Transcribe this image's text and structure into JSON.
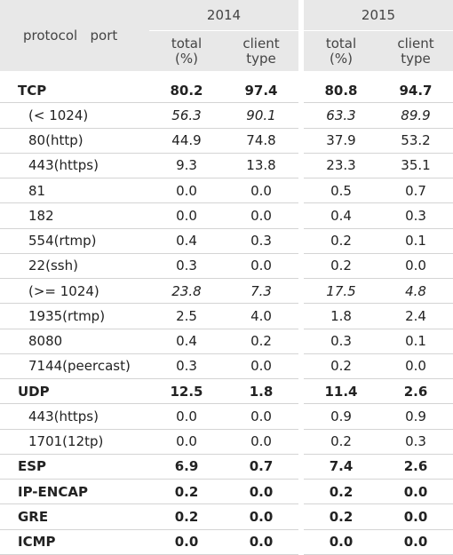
{
  "header": {
    "corner_label": "protocol   port",
    "years": [
      "2014",
      "2015"
    ],
    "sub": {
      "total": "total",
      "pct": "(%)",
      "client": "client",
      "type": "type"
    }
  },
  "rows": [
    {
      "label": "TCP",
      "level": "top",
      "v": [
        "80.2",
        "97.4",
        "80.8",
        "94.7"
      ]
    },
    {
      "label": "(< 1024)",
      "level": "subagg",
      "v": [
        "56.3",
        "90.1",
        "63.3",
        "89.9"
      ]
    },
    {
      "label": "80(http)",
      "level": "child",
      "v": [
        "44.9",
        "74.8",
        "37.9",
        "53.2"
      ]
    },
    {
      "label": "443(https)",
      "level": "child",
      "v": [
        "9.3",
        "13.8",
        "23.3",
        "35.1"
      ]
    },
    {
      "label": "81",
      "level": "child",
      "v": [
        "0.0",
        "0.0",
        "0.5",
        "0.7"
      ]
    },
    {
      "label": "182",
      "level": "child",
      "v": [
        "0.0",
        "0.0",
        "0.4",
        "0.3"
      ]
    },
    {
      "label": "554(rtmp)",
      "level": "child",
      "v": [
        "0.4",
        "0.3",
        "0.2",
        "0.1"
      ]
    },
    {
      "label": "22(ssh)",
      "level": "child",
      "v": [
        "0.3",
        "0.0",
        "0.2",
        "0.0"
      ]
    },
    {
      "label": "(>= 1024)",
      "level": "subagg",
      "v": [
        "23.8",
        "7.3",
        "17.5",
        "4.8"
      ]
    },
    {
      "label": "1935(rtmp)",
      "level": "child",
      "v": [
        "2.5",
        "4.0",
        "1.8",
        "2.4"
      ]
    },
    {
      "label": "8080",
      "level": "child",
      "v": [
        "0.4",
        "0.2",
        "0.3",
        "0.1"
      ]
    },
    {
      "label": "7144(peercast)",
      "level": "child",
      "v": [
        "0.3",
        "0.0",
        "0.2",
        "0.0"
      ]
    },
    {
      "label": "UDP",
      "level": "top",
      "v": [
        "12.5",
        "1.8",
        "11.4",
        "2.6"
      ]
    },
    {
      "label": "443(https)",
      "level": "child",
      "v": [
        "0.0",
        "0.0",
        "0.9",
        "0.9"
      ]
    },
    {
      "label": "1701(12tp)",
      "level": "child",
      "v": [
        "0.0",
        "0.0",
        "0.2",
        "0.3"
      ]
    },
    {
      "label": "ESP",
      "level": "top",
      "v": [
        "6.9",
        "0.7",
        "7.4",
        "2.6"
      ]
    },
    {
      "label": "IP-ENCAP",
      "level": "top",
      "v": [
        "0.2",
        "0.0",
        "0.2",
        "0.0"
      ]
    },
    {
      "label": "GRE",
      "level": "top",
      "v": [
        "0.2",
        "0.0",
        "0.2",
        "0.0"
      ]
    },
    {
      "label": "ICMP",
      "level": "top",
      "v": [
        "0.0",
        "0.0",
        "0.0",
        "0.0"
      ]
    }
  ]
}
